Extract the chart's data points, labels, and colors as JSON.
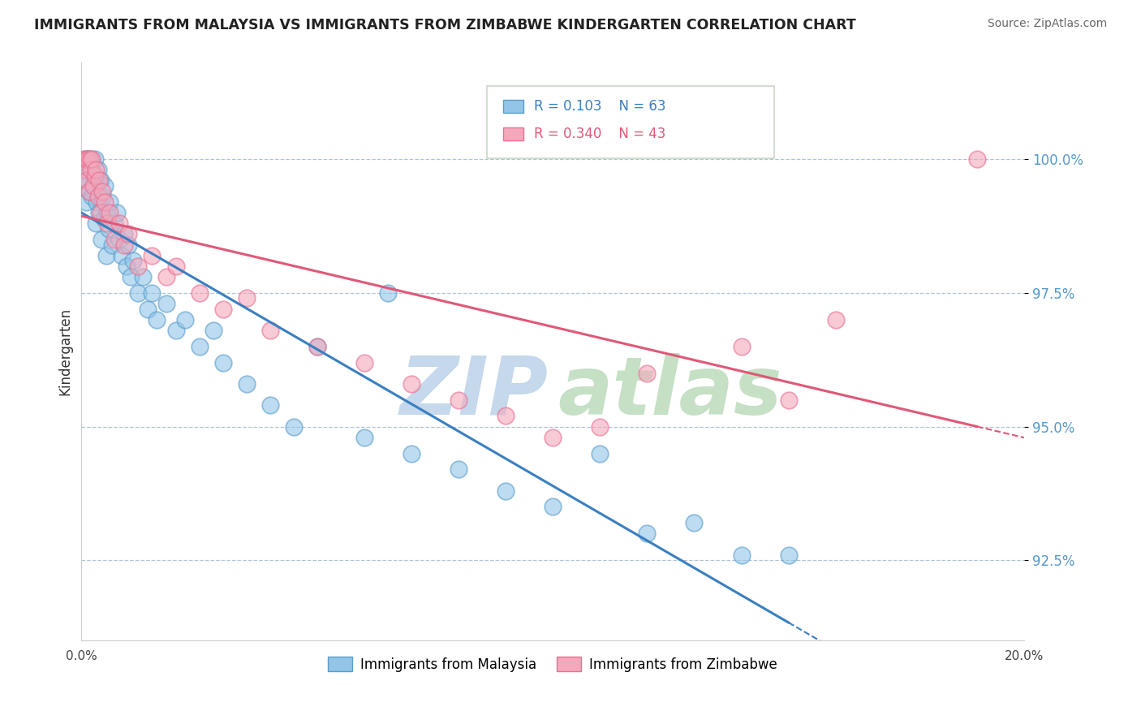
{
  "title": "IMMIGRANTS FROM MALAYSIA VS IMMIGRANTS FROM ZIMBABWE KINDERGARTEN CORRELATION CHART",
  "source_text": "Source: ZipAtlas.com",
  "ylabel": "Kindergarten",
  "x_min": 0.0,
  "x_max": 20.0,
  "y_min": 91.0,
  "y_max": 101.8,
  "y_ticks": [
    92.5,
    95.0,
    97.5,
    100.0
  ],
  "malaysia_R": 0.103,
  "malaysia_N": 63,
  "zimbabwe_R": 0.34,
  "zimbabwe_N": 43,
  "malaysia_color": "#92c5e8",
  "zimbabwe_color": "#f4a8bc",
  "malaysia_edge": "#5b9dc9",
  "zimbabwe_edge": "#e87090",
  "watermark_zip_color": "#c5d8ec",
  "watermark_atlas_color": "#c5e0c5",
  "legend_box_color": "#e8f0e8",
  "malaysia_line_color": "#3a7fc1",
  "zimbabwe_line_color": "#e05878",
  "ytick_color": "#5599cc",
  "title_color": "#222222",
  "source_color": "#666666",
  "malaysia_x": [
    0.05,
    0.08,
    0.1,
    0.1,
    0.12,
    0.13,
    0.15,
    0.16,
    0.18,
    0.2,
    0.22,
    0.25,
    0.28,
    0.3,
    0.3,
    0.32,
    0.35,
    0.38,
    0.4,
    0.42,
    0.45,
    0.48,
    0.5,
    0.52,
    0.55,
    0.58,
    0.6,
    0.65,
    0.7,
    0.75,
    0.8,
    0.85,
    0.9,
    0.95,
    1.0,
    1.05,
    1.1,
    1.2,
    1.3,
    1.4,
    1.5,
    1.6,
    1.8,
    2.0,
    2.2,
    2.5,
    2.8,
    3.0,
    3.5,
    4.0,
    4.5,
    5.0,
    6.0,
    6.5,
    7.0,
    8.0,
    9.0,
    10.0,
    11.0,
    12.0,
    13.0,
    14.0,
    15.0
  ],
  "malaysia_y": [
    99.5,
    99.8,
    100.0,
    99.2,
    100.0,
    99.6,
    100.0,
    99.4,
    99.8,
    100.0,
    99.3,
    99.7,
    100.0,
    99.5,
    98.8,
    99.2,
    99.8,
    99.0,
    99.6,
    98.5,
    99.3,
    98.9,
    99.5,
    98.2,
    99.0,
    98.7,
    99.2,
    98.4,
    98.8,
    99.0,
    98.5,
    98.2,
    98.6,
    98.0,
    98.4,
    97.8,
    98.1,
    97.5,
    97.8,
    97.2,
    97.5,
    97.0,
    97.3,
    96.8,
    97.0,
    96.5,
    96.8,
    96.2,
    95.8,
    95.4,
    95.0,
    96.5,
    94.8,
    97.5,
    94.5,
    94.2,
    93.8,
    93.5,
    94.5,
    93.0,
    93.2,
    92.6,
    92.6
  ],
  "zimbabwe_x": [
    0.05,
    0.08,
    0.1,
    0.12,
    0.14,
    0.16,
    0.18,
    0.2,
    0.22,
    0.25,
    0.28,
    0.3,
    0.35,
    0.38,
    0.4,
    0.45,
    0.5,
    0.55,
    0.6,
    0.7,
    0.8,
    0.9,
    1.0,
    1.2,
    1.5,
    1.8,
    2.0,
    2.5,
    3.0,
    3.5,
    4.0,
    5.0,
    6.0,
    7.0,
    8.0,
    9.0,
    10.0,
    11.0,
    12.0,
    14.0,
    15.0,
    16.0,
    19.0
  ],
  "zimbabwe_y": [
    100.0,
    99.8,
    100.0,
    99.6,
    100.0,
    99.4,
    100.0,
    99.8,
    100.0,
    99.5,
    99.7,
    99.8,
    99.3,
    99.6,
    99.0,
    99.4,
    99.2,
    98.8,
    99.0,
    98.5,
    98.8,
    98.4,
    98.6,
    98.0,
    98.2,
    97.8,
    98.0,
    97.5,
    97.2,
    97.4,
    96.8,
    96.5,
    96.2,
    95.8,
    95.5,
    95.2,
    94.8,
    95.0,
    96.0,
    96.5,
    95.5,
    97.0,
    100.0
  ]
}
